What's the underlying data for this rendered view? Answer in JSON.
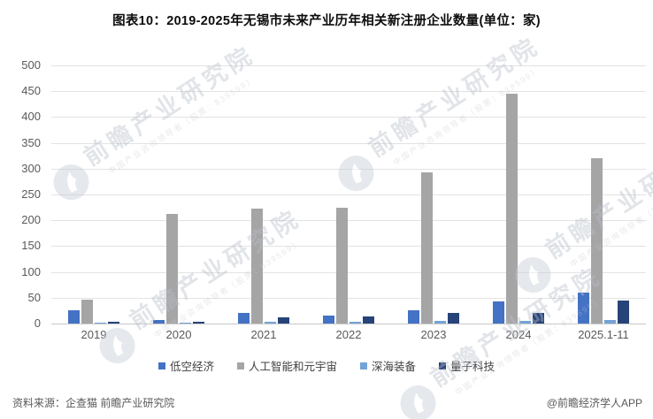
{
  "title": "图表10：2019-2025年无锡市未来产业历年相关新注册企业数量(单位：家)",
  "footer": {
    "source": "资料来源：企查猫 前瞻产业研究院",
    "credit": "@前瞻经济学人APP"
  },
  "watermark": {
    "main": "前瞻产业研究院",
    "sub": "中国产业咨询领导者（股票：839599）",
    "logo_name": "qianzhan-logo-icon"
  },
  "colors": {
    "grid": "#e3e3e3",
    "axis": "#c8c8c8",
    "tick_text": "#595959",
    "title_text": "#0d0d0d"
  },
  "chart_data": {
    "type": "bar",
    "title": "图表10：2019-2025年无锡市未来产业历年相关新注册企业数量(单位：家)",
    "unit": "家",
    "categories": [
      "2019",
      "2020",
      "2021",
      "2022",
      "2023",
      "2024",
      "2025.1-11"
    ],
    "series": [
      {
        "name": "低空经济",
        "color": "#4472C4",
        "values": [
          25,
          7,
          20,
          15,
          25,
          43,
          60
        ]
      },
      {
        "name": "人工智能和元宇宙",
        "color": "#A5A5A5",
        "values": [
          47,
          212,
          222,
          225,
          293,
          445,
          321
        ]
      },
      {
        "name": "深海装备",
        "color": "#74A3D8",
        "values": [
          2,
          2,
          3,
          3,
          5,
          6,
          7
        ]
      },
      {
        "name": "量子科技",
        "color": "#264478",
        "values": [
          4,
          3,
          12,
          14,
          21,
          21,
          45
        ]
      }
    ],
    "xlabel": "",
    "ylabel": "",
    "ylim": [
      0,
      500
    ],
    "ytick_step": 50,
    "grid": true,
    "legend_position": "bottom"
  }
}
